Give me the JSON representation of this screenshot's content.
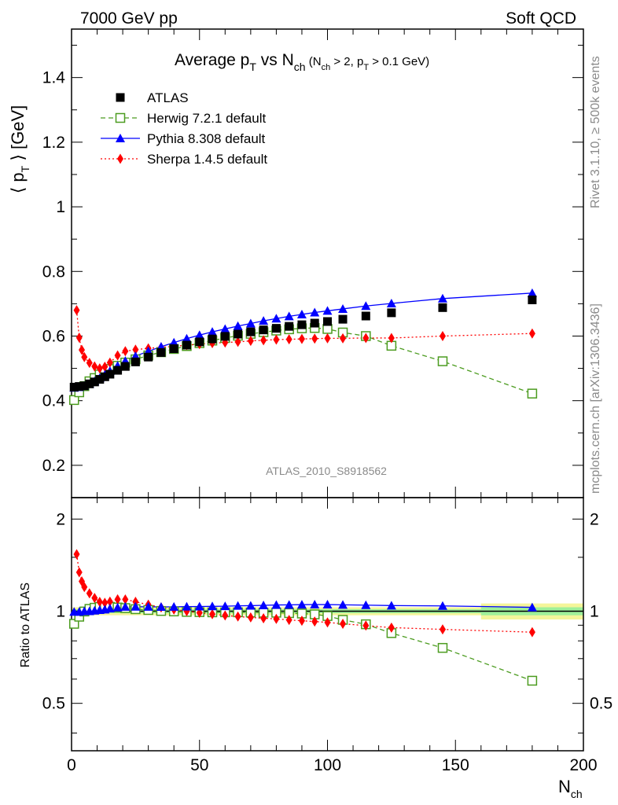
{
  "header": {
    "left": "7000 GeV pp",
    "right": "Soft QCD"
  },
  "side": {
    "rivet": "Rivet 3.1.10, ≥ 500k events",
    "mcplots": "mcplots.cern.ch [arXiv:1306.3436]"
  },
  "watermark": "ATLAS_2010_S8918562",
  "title": {
    "main": "Average p",
    "main_sub": "T",
    "vs": " vs N",
    "vs_sub": "ch",
    "cut1": " (N",
    "cut1_sub": "ch",
    "cut2": " > 2, p",
    "cut2_sub": "T",
    "cut3": " > 0.1 GeV)"
  },
  "ylabel_top": {
    "pre": "⟨ p",
    "sub": "T",
    "post": " ⟩  [GeV]"
  },
  "ylabel_bottom": "Ratio to ATLAS",
  "xlabel": {
    "main": "N",
    "sub": "ch"
  },
  "chart_data": {
    "type": "scatter",
    "x_range": [
      0,
      200
    ],
    "x_ticks": [
      0,
      50,
      100,
      150,
      200
    ],
    "x_tick_labels": [
      "0",
      "50",
      "100",
      "150",
      "200"
    ],
    "top": {
      "ylim": [
        0.1,
        1.55
      ],
      "y_ticks": [
        0.2,
        0.4,
        0.6,
        0.8,
        1.0,
        1.2,
        1.4
      ],
      "y_tick_labels": [
        "0.2",
        "0.4",
        "0.6",
        "0.8",
        "1",
        "1.2",
        "1.4"
      ]
    },
    "bottom": {
      "ylim": [
        0.35,
        2.35
      ],
      "y_ticks": [
        0.5,
        1,
        2
      ],
      "y_tick_labels": [
        "0.5",
        "1",
        "2"
      ],
      "band_green": [
        [
          0,
          0.985,
          1.015
        ],
        [
          160,
          0.97,
          1.03
        ],
        [
          200,
          0.97,
          1.03
        ]
      ],
      "band_yellow": [
        [
          0,
          0.97,
          1.03
        ],
        [
          160,
          0.94,
          1.06
        ],
        [
          200,
          0.94,
          1.06
        ]
      ]
    },
    "legend": [
      "ATLAS",
      "Herwig 7.2.1 default",
      "Pythia 8.308 default",
      "Sherpa 1.4.5 default"
    ],
    "series": [
      {
        "name": "ATLAS",
        "color": "#000000",
        "marker": "square",
        "x": [
          1,
          3,
          5,
          7,
          9,
          11,
          13,
          15,
          18,
          21,
          25,
          30,
          35,
          40,
          45,
          50,
          55,
          60,
          65,
          70,
          75,
          80,
          85,
          90,
          95,
          100,
          106,
          115,
          125,
          145,
          180
        ],
        "y": [
          0.442,
          0.444,
          0.446,
          0.452,
          0.458,
          0.466,
          0.474,
          0.482,
          0.494,
          0.506,
          0.52,
          0.535,
          0.549,
          0.561,
          0.572,
          0.582,
          0.591,
          0.599,
          0.606,
          0.613,
          0.619,
          0.624,
          0.63,
          0.635,
          0.64,
          0.645,
          0.652,
          0.662,
          0.672,
          0.688,
          0.712
        ]
      },
      {
        "name": "Herwig 7.2.1 default",
        "color": "#4c9c20",
        "marker": "open-square",
        "line": "dashed",
        "x": [
          1,
          3,
          5,
          7,
          9,
          11,
          13,
          15,
          18,
          21,
          25,
          30,
          35,
          40,
          45,
          50,
          55,
          60,
          65,
          70,
          75,
          80,
          85,
          90,
          95,
          100,
          106,
          115,
          125,
          145,
          180
        ],
        "y": [
          0.402,
          0.426,
          0.445,
          0.46,
          0.47,
          0.481,
          0.49,
          0.498,
          0.508,
          0.518,
          0.528,
          0.54,
          0.55,
          0.56,
          0.569,
          0.578,
          0.586,
          0.594,
          0.601,
          0.607,
          0.612,
          0.617,
          0.621,
          0.624,
          0.625,
          0.622,
          0.611,
          0.6,
          0.57,
          0.522,
          0.422
        ]
      },
      {
        "name": "Pythia 8.308 default",
        "color": "#0000ff",
        "marker": "triangle",
        "line": "solid",
        "x": [
          1,
          3,
          5,
          7,
          9,
          11,
          13,
          15,
          18,
          21,
          25,
          30,
          35,
          40,
          45,
          50,
          55,
          60,
          65,
          70,
          75,
          80,
          85,
          90,
          95,
          100,
          106,
          115,
          125,
          145,
          180
        ],
        "y": [
          0.44,
          0.442,
          0.446,
          0.452,
          0.46,
          0.47,
          0.48,
          0.492,
          0.508,
          0.523,
          0.538,
          0.553,
          0.567,
          0.58,
          0.592,
          0.603,
          0.613,
          0.622,
          0.631,
          0.639,
          0.647,
          0.654,
          0.661,
          0.667,
          0.673,
          0.678,
          0.684,
          0.693,
          0.701,
          0.716,
          0.733
        ]
      },
      {
        "name": "Sherpa 1.4.5 default",
        "color": "#ff0000",
        "marker": "diamond",
        "line": "dotted",
        "x": [
          2,
          3,
          4,
          5,
          7,
          9,
          11,
          13,
          15,
          18,
          21,
          25,
          30,
          35,
          40,
          45,
          50,
          55,
          60,
          65,
          70,
          75,
          80,
          85,
          90,
          95,
          100,
          106,
          115,
          125,
          145,
          180
        ],
        "y": [
          0.68,
          0.595,
          0.557,
          0.535,
          0.517,
          0.506,
          0.5,
          0.505,
          0.518,
          0.54,
          0.553,
          0.558,
          0.562,
          0.565,
          0.568,
          0.572,
          0.575,
          0.578,
          0.58,
          0.582,
          0.585,
          0.587,
          0.589,
          0.59,
          0.591,
          0.592,
          0.593,
          0.593,
          0.594,
          0.594,
          0.6,
          0.608
        ]
      }
    ]
  }
}
